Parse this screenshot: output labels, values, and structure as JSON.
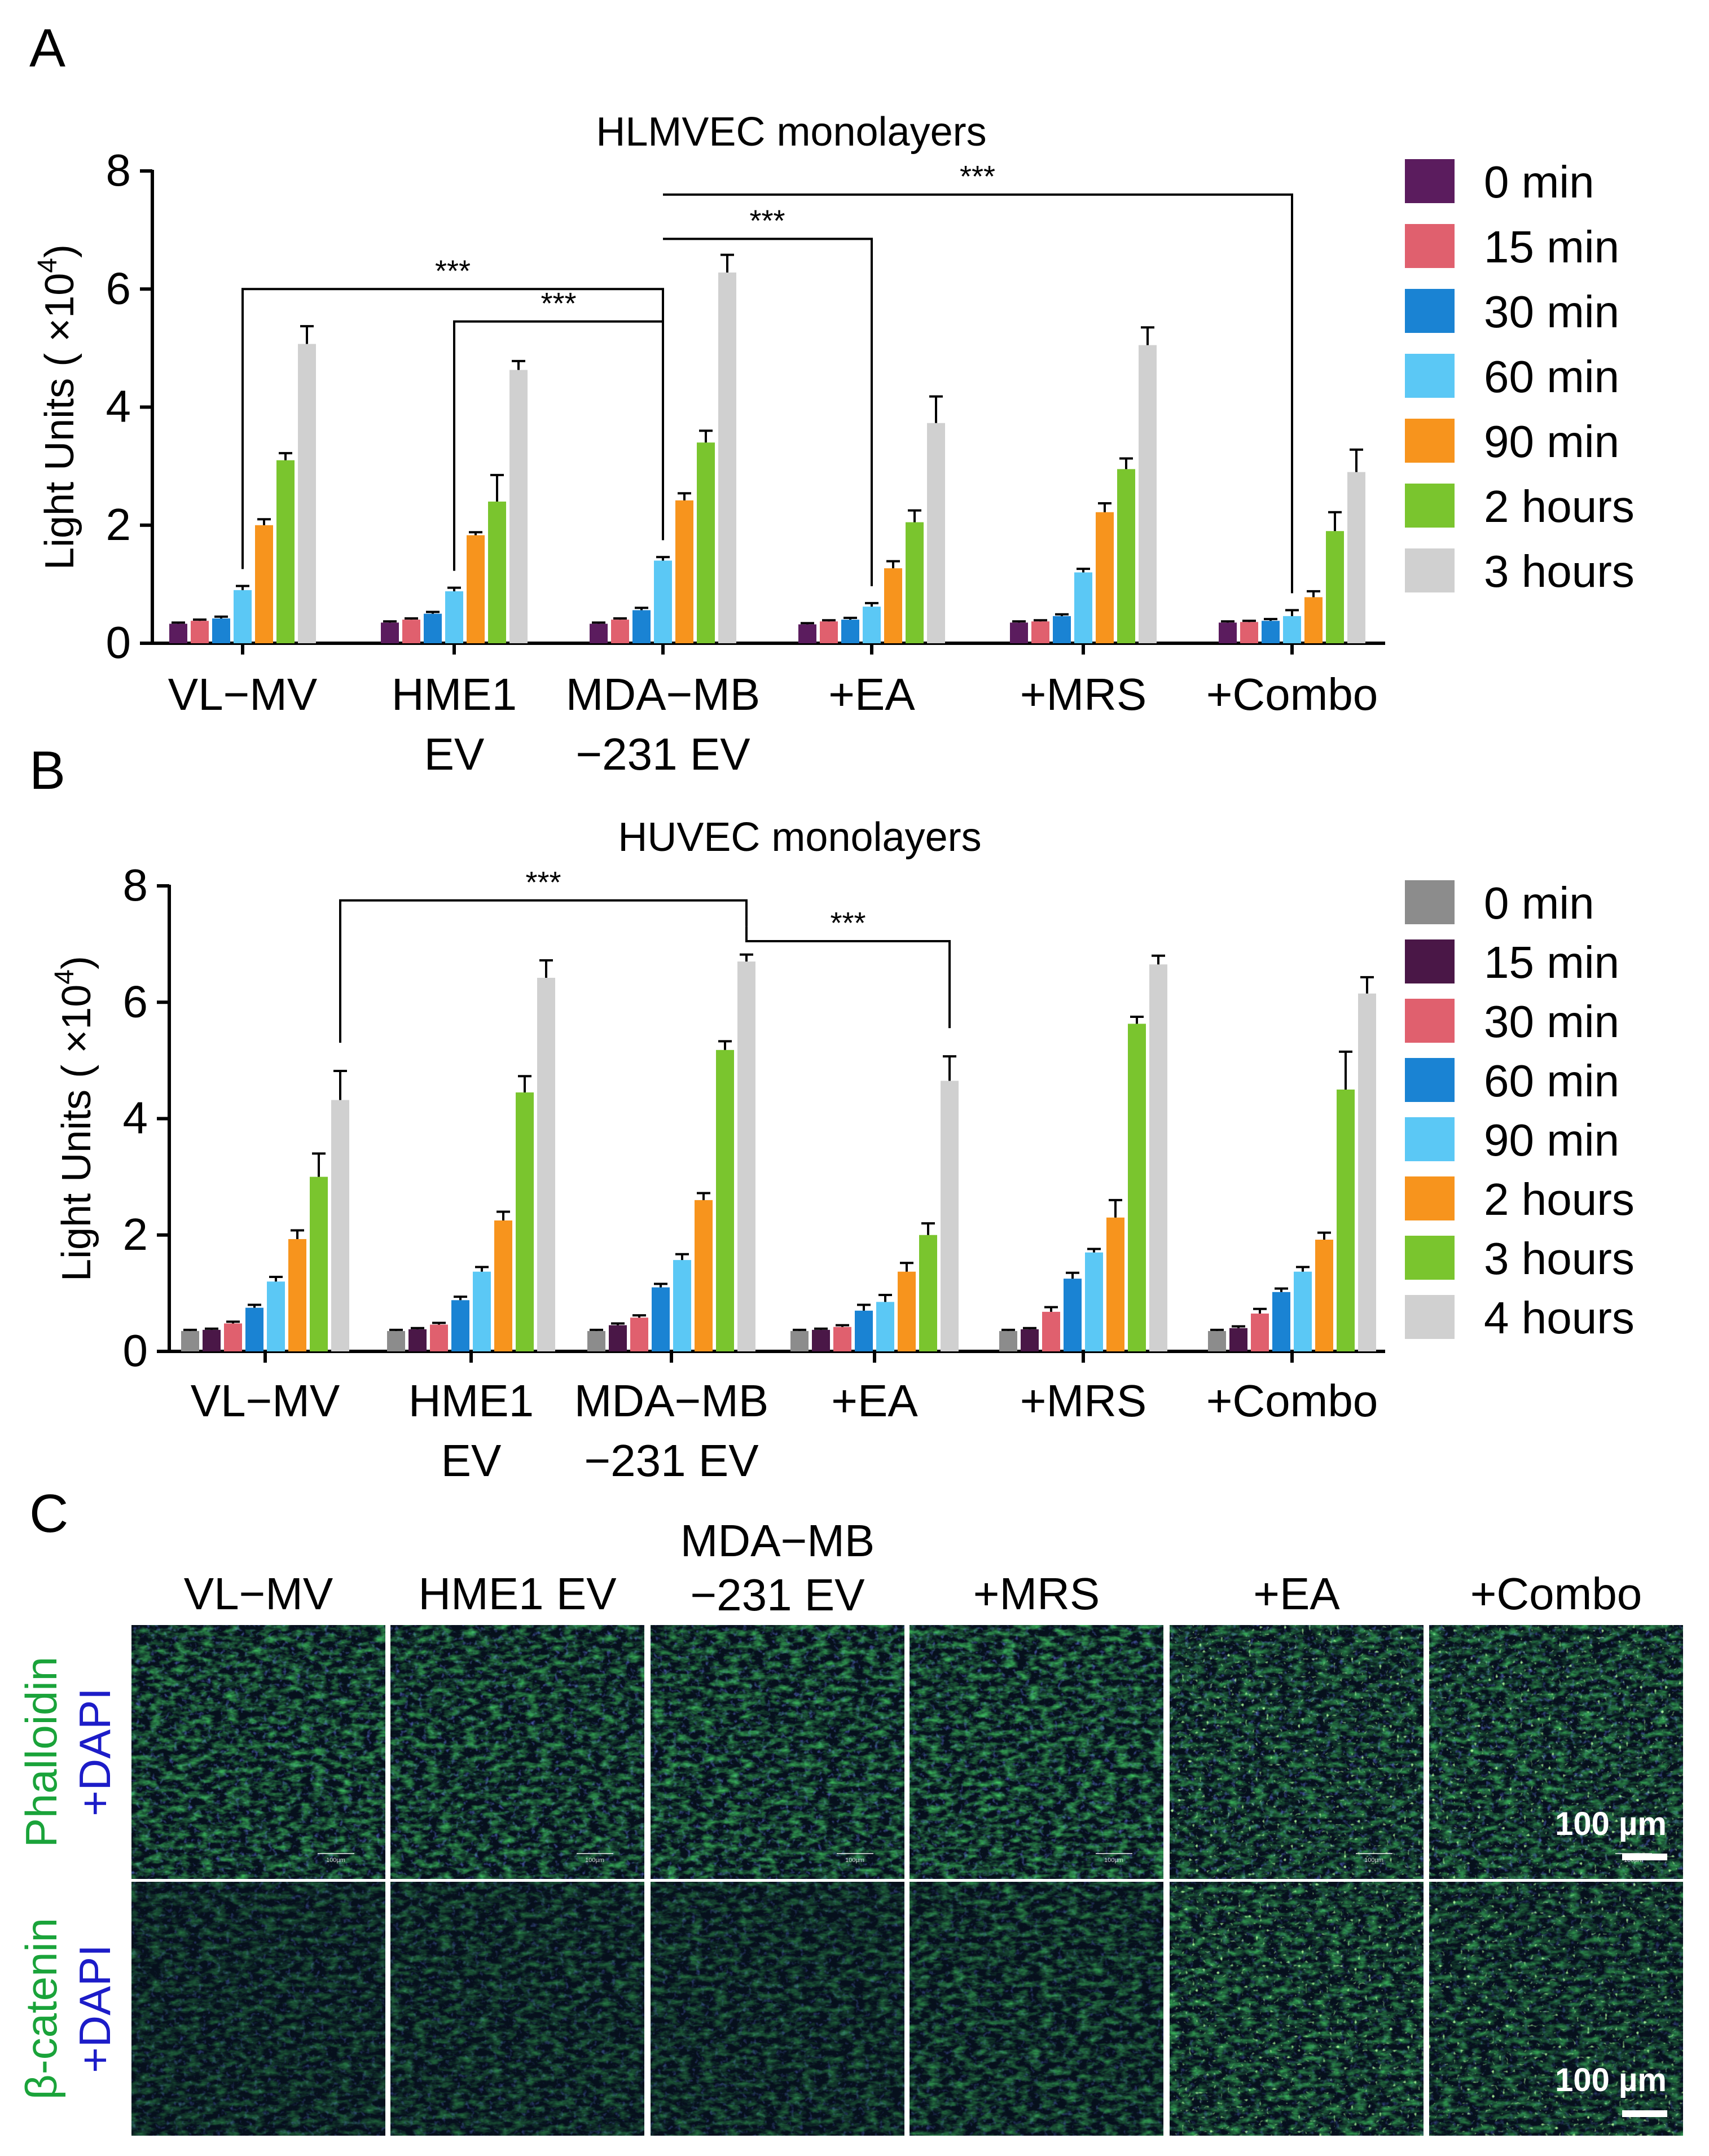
{
  "panels": {
    "A": {
      "label": "A"
    },
    "B": {
      "label": "B"
    },
    "C": {
      "label": "C",
      "columns": [
        "VL−MV",
        "HME1 EV",
        "MDA−MB\n−231 EV",
        "+MRS",
        "+EA",
        "+Combo"
      ],
      "rows": [
        {
          "stain": "Phalloidin",
          "counter": "+DAPI",
          "stain_color": "#1aa33a",
          "counter_color": "#1c1cc8"
        },
        {
          "stain": "β-catenin",
          "counter": "+DAPI",
          "stain_color": "#1aa33a",
          "counter_color": "#1c1cc8"
        }
      ],
      "scale_bar": "100 µm",
      "micro_label": "100µm"
    }
  },
  "chart_data": [
    {
      "panel": "A",
      "type": "bar",
      "title": "HLMVEC monolayers",
      "ylabel": "Light Units ( ×10^4)",
      "xlabel": "",
      "ylim": [
        0,
        8
      ],
      "yticks": [
        0,
        2,
        4,
        6,
        8
      ],
      "grid": false,
      "legend_position": "right",
      "categories": [
        "VL−MV",
        "HME1\nEV",
        "MDA−MB\n−231 EV",
        "+EA",
        "+MRS",
        "+Combo"
      ],
      "series": [
        {
          "name": "0 min",
          "color": "#5b1c5e",
          "values": [
            0.33,
            0.35,
            0.33,
            0.32,
            0.35,
            0.35
          ],
          "errors": [
            0.02,
            0.02,
            0.02,
            0.02,
            0.02,
            0.02
          ]
        },
        {
          "name": "15 min",
          "color": "#e0606e",
          "values": [
            0.38,
            0.4,
            0.4,
            0.37,
            0.37,
            0.36
          ],
          "errors": [
            0.02,
            0.02,
            0.02,
            0.02,
            0.02,
            0.02
          ]
        },
        {
          "name": "30 min",
          "color": "#1a83d3",
          "values": [
            0.42,
            0.5,
            0.56,
            0.4,
            0.46,
            0.38
          ],
          "errors": [
            0.03,
            0.03,
            0.04,
            0.03,
            0.03,
            0.03
          ]
        },
        {
          "name": "60 min",
          "color": "#5bc8f5",
          "values": [
            0.9,
            0.88,
            1.4,
            0.62,
            1.2,
            0.46
          ],
          "errors": [
            0.07,
            0.06,
            0.06,
            0.06,
            0.06,
            0.1
          ]
        },
        {
          "name": "90 min",
          "color": "#f7941d",
          "values": [
            2.0,
            1.83,
            2.42,
            1.27,
            2.22,
            0.78
          ],
          "errors": [
            0.1,
            0.05,
            0.12,
            0.12,
            0.15,
            0.1
          ]
        },
        {
          "name": "2 hours",
          "color": "#7ac52e",
          "values": [
            3.1,
            2.4,
            3.4,
            2.05,
            2.95,
            1.9
          ],
          "errors": [
            0.12,
            0.45,
            0.2,
            0.2,
            0.18,
            0.32
          ]
        },
        {
          "name": "3 hours",
          "color": "#d0d0d0",
          "values": [
            5.07,
            4.63,
            6.28,
            3.73,
            5.05,
            2.9
          ],
          "errors": [
            0.3,
            0.15,
            0.3,
            0.45,
            0.3,
            0.38
          ]
        }
      ],
      "annotations": [
        {
          "text": "***",
          "from_category": 0,
          "to_category": 2
        },
        {
          "text": "***",
          "from_category": 1,
          "to_category": 2
        },
        {
          "text": "***",
          "from_category": 2,
          "to_category": 3
        },
        {
          "text": "***",
          "from_category": 2,
          "to_category": 5
        }
      ]
    },
    {
      "panel": "B",
      "type": "bar",
      "title": "HUVEC monolayers",
      "ylabel": "Light Units ( ×10^4)",
      "xlabel": "",
      "ylim": [
        0,
        8
      ],
      "yticks": [
        0,
        2,
        4,
        6,
        8
      ],
      "grid": false,
      "legend_position": "right",
      "categories": [
        "VL−MV",
        "HME1\nEV",
        "MDA−MB\n−231 EV",
        "+EA",
        "+MRS",
        "+Combo"
      ],
      "series": [
        {
          "name": "0 min",
          "color": "#8c8c8c",
          "values": [
            0.35,
            0.35,
            0.35,
            0.35,
            0.35,
            0.35
          ],
          "errors": [
            0.02,
            0.02,
            0.02,
            0.02,
            0.02,
            0.02
          ]
        },
        {
          "name": "15 min",
          "color": "#4a1747",
          "values": [
            0.37,
            0.38,
            0.45,
            0.37,
            0.38,
            0.4
          ],
          "errors": [
            0.02,
            0.02,
            0.03,
            0.02,
            0.02,
            0.03
          ]
        },
        {
          "name": "30 min",
          "color": "#e0606e",
          "values": [
            0.48,
            0.46,
            0.58,
            0.42,
            0.68,
            0.65
          ],
          "errors": [
            0.03,
            0.03,
            0.04,
            0.03,
            0.08,
            0.08
          ]
        },
        {
          "name": "60 min",
          "color": "#1a83d3",
          "values": [
            0.75,
            0.88,
            1.1,
            0.7,
            1.25,
            1.02
          ],
          "errors": [
            0.05,
            0.06,
            0.06,
            0.1,
            0.1,
            0.06
          ]
        },
        {
          "name": "90 min",
          "color": "#5bc8f5",
          "values": [
            1.2,
            1.37,
            1.57,
            0.85,
            1.7,
            1.37
          ],
          "errors": [
            0.08,
            0.08,
            0.1,
            0.12,
            0.06,
            0.08
          ]
        },
        {
          "name": "2 hours",
          "color": "#f7941d",
          "values": [
            1.93,
            2.25,
            2.6,
            1.37,
            2.3,
            1.92
          ],
          "errors": [
            0.15,
            0.15,
            0.12,
            0.15,
            0.3,
            0.12
          ]
        },
        {
          "name": "3 hours",
          "color": "#7ac52e",
          "values": [
            3.0,
            4.45,
            5.18,
            2.0,
            5.63,
            4.5
          ],
          "errors": [
            0.4,
            0.28,
            0.15,
            0.2,
            0.12,
            0.65
          ]
        },
        {
          "name": "4 hours",
          "color": "#d0d0d0",
          "values": [
            4.32,
            6.42,
            6.7,
            4.65,
            6.65,
            6.15
          ],
          "errors": [
            0.5,
            0.3,
            0.12,
            0.42,
            0.15,
            0.28
          ]
        }
      ],
      "annotations": [
        {
          "text": "***",
          "from_category": 0,
          "to_category": 2
        },
        {
          "text": "***",
          "from_category": 2,
          "to_category": 3
        }
      ]
    }
  ]
}
